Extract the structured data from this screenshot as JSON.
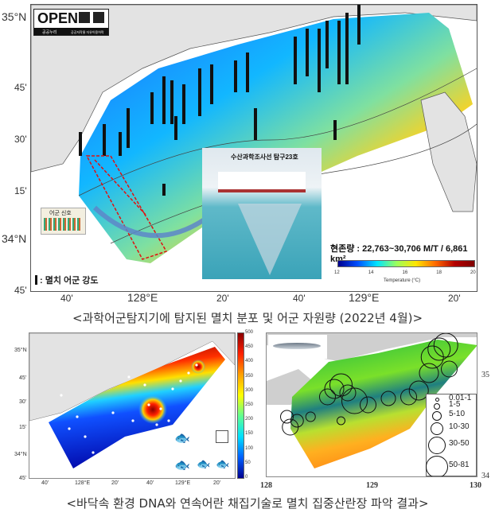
{
  "top_map": {
    "logo": {
      "text": "OPEN",
      "sub_left": "공공누리",
      "sub_right": "공공저작물 자유이용허락"
    },
    "lat_labels": [
      "35°N",
      "45'",
      "30'",
      "15'",
      "34°N",
      "45'"
    ],
    "lon_labels": [
      "40'",
      "128°E",
      "20'",
      "40'",
      "129°E",
      "20'"
    ],
    "biomass_text": "현존량 : 22,763~30,706 M/T / 6,861 km²",
    "colorbar": {
      "ticks": [
        "12",
        "14",
        "16",
        "18",
        "20"
      ],
      "label": "Temperature (°C)",
      "colors": [
        "#00008f",
        "#0050ff",
        "#00e5ff",
        "#9bff5c",
        "#ffe600",
        "#ff6a00",
        "#b30000",
        "#7f0000"
      ]
    },
    "legend_text": ": 멸치 어군 강도",
    "ship_photo_label": "수산과학조사선 탐구23호",
    "echo_label": "어군 신호"
  },
  "caption_top": "<과학어군탐지기에 탐지된 멸치 분포 및 어군 자원량 (2022년 4월)>",
  "bottom_left_map": {
    "lat_labels": [
      "35°N",
      "45'",
      "30'",
      "15'",
      "34°N",
      "45'"
    ],
    "lon_labels": [
      "40'",
      "128°E",
      "20'",
      "40'",
      "129°E",
      "20'"
    ],
    "colorbar_ticks": [
      "500",
      "450",
      "400",
      "350",
      "300",
      "250",
      "200",
      "150",
      "100",
      "50",
      "0"
    ]
  },
  "bottom_right_map": {
    "lat_labels": [
      "35",
      "34"
    ],
    "lon_labels": [
      "128",
      "129",
      "130"
    ],
    "legend": [
      "0.01-1",
      "1-5",
      "5-10",
      "10-30",
      "30-50",
      "50-81"
    ]
  },
  "caption_bottom": "<바닥속 환경 DNA와 연속어란 채집기술로 멸치 집중산란장 파악 결과>"
}
